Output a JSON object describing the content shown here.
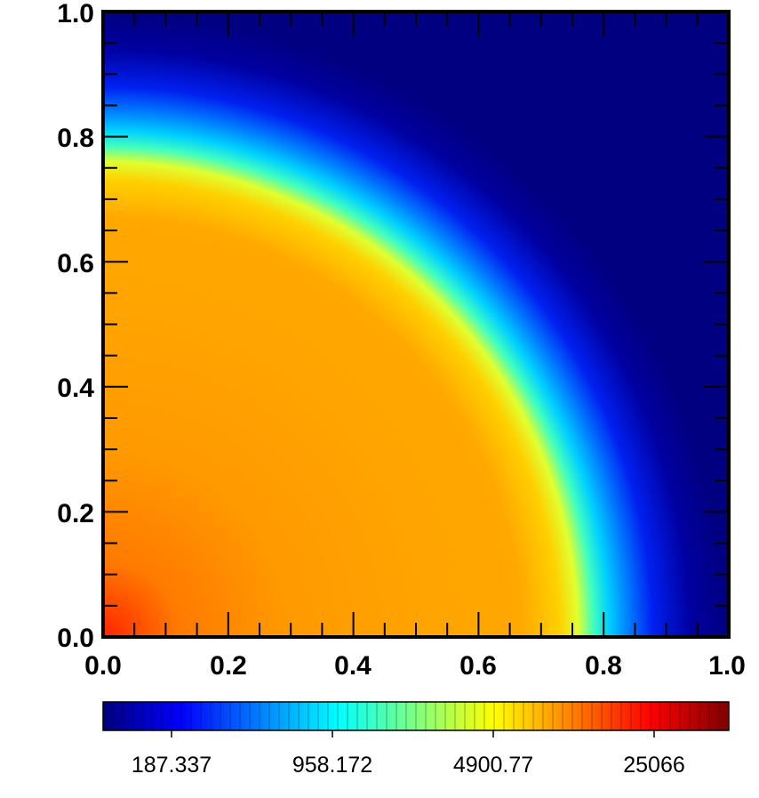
{
  "chart_data": {
    "type": "heatmap",
    "title": "",
    "xlabel": "",
    "ylabel": "",
    "xlim": [
      0.0,
      1.0
    ],
    "ylim": [
      0.0,
      1.0
    ],
    "x_ticks": [
      "0.0",
      "0.2",
      "0.4",
      "0.6",
      "0.8",
      "1.0"
    ],
    "y_ticks": [
      "0.0",
      "0.2",
      "0.4",
      "0.6",
      "0.8",
      "1.0"
    ],
    "colormap": "jet",
    "colorscale": "log",
    "colorbar": {
      "placement": "bottom",
      "labels": [
        "187.337",
        "958.172",
        "4900.77",
        "25066"
      ]
    },
    "field": {
      "shape": "quarter-circle radial field centered at origin",
      "front_radius": 0.78,
      "inner_color": "#ffa500",
      "core_color": "#ff2000",
      "outer_color": "#00008b"
    },
    "colors": {
      "jet_stops": [
        "#00007f",
        "#0000ff",
        "#007fff",
        "#00ffff",
        "#7fff7f",
        "#ffff00",
        "#ff7f00",
        "#ff0000",
        "#7f0000"
      ],
      "frame": "#000000"
    }
  }
}
